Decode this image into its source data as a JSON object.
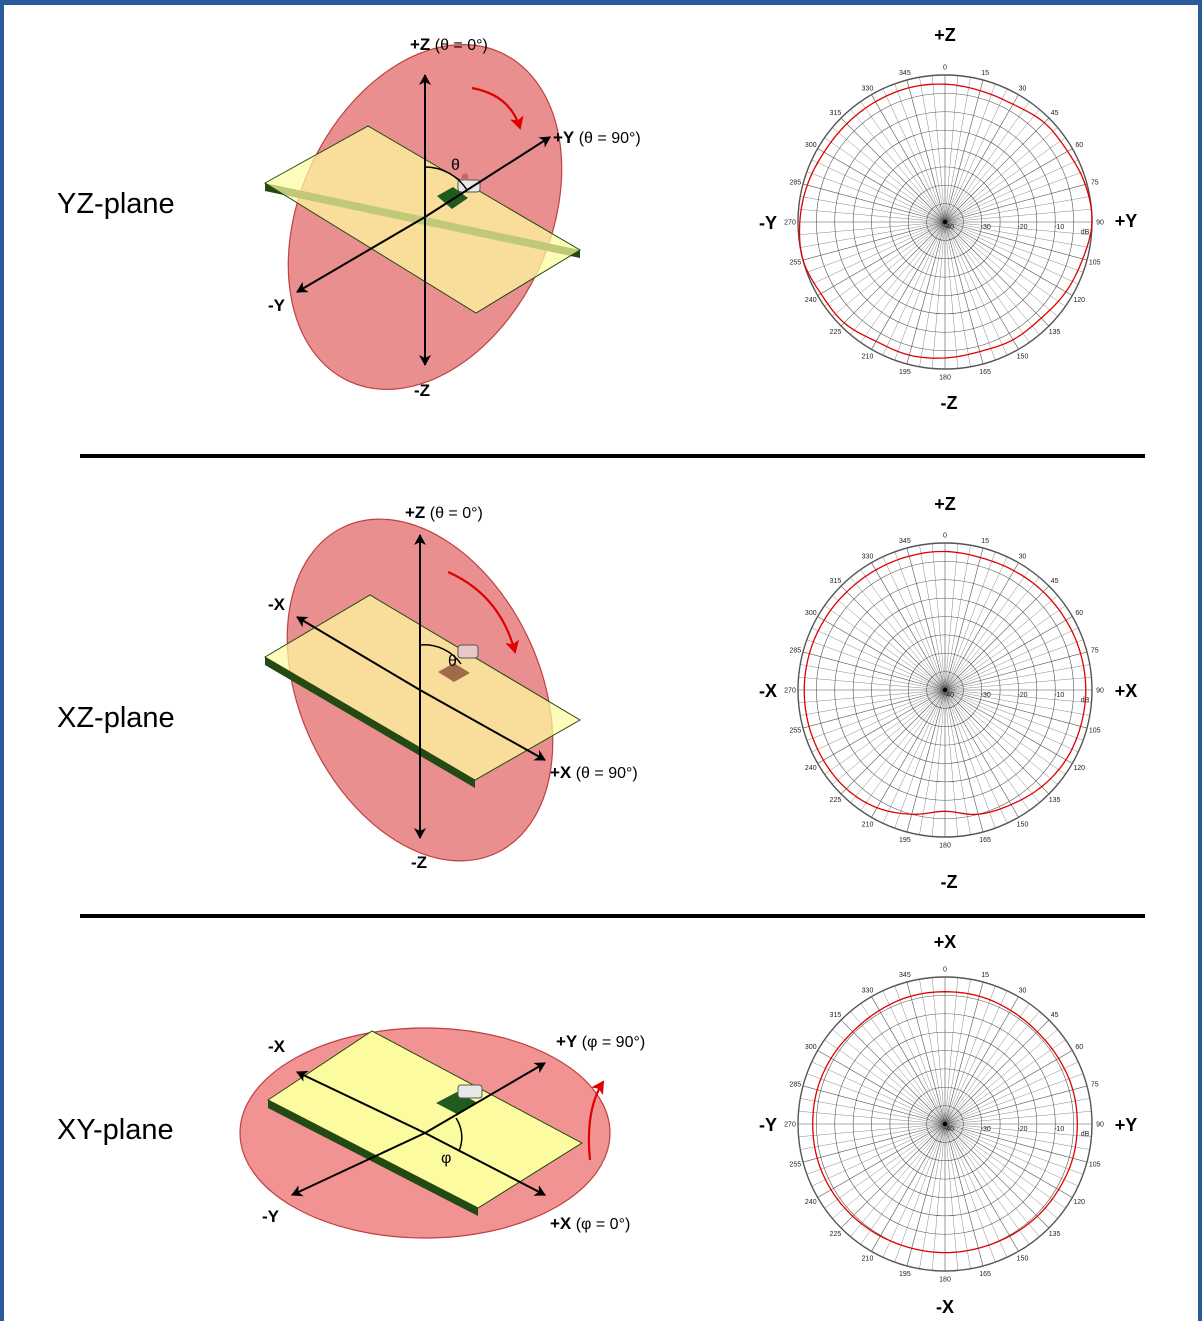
{
  "sections": [
    {
      "plane_label": "YZ-plane",
      "diagram": {
        "top": {
          "axis": "+Z",
          "paren": " (θ = 0°)"
        },
        "right": {
          "axis": "+Y",
          "paren": " (θ = 90°)"
        },
        "left": "-Y",
        "bottom": "-Z",
        "angle": "θ"
      },
      "polar": {
        "top": "+Z",
        "bottom": "-Z",
        "left": "-Y",
        "right": "+Y"
      }
    },
    {
      "plane_label": "XZ-plane",
      "diagram": {
        "top": {
          "axis": "+Z",
          "paren": " (θ = 0°)"
        },
        "right": {
          "axis": "+X",
          "paren": " (θ = 90°)"
        },
        "left": "-X",
        "bottom": "-Z",
        "angle": "θ"
      },
      "polar": {
        "top": "+Z",
        "bottom": "-Z",
        "left": "-X",
        "right": "+X"
      }
    },
    {
      "plane_label": "XY-plane",
      "diagram": {
        "top": {
          "axis": "+Y",
          "paren": " (φ = 90°)"
        },
        "right": {
          "axis": "+X",
          "paren": " (φ = 0°)"
        },
        "left": "-X",
        "bottom": "-Y",
        "angle": "φ"
      },
      "polar": {
        "top": "+X",
        "bottom": "-X",
        "left": "-Y",
        "right": "+Y"
      }
    }
  ],
  "polar_grid": {
    "angle_labels": [
      "0",
      "15",
      "30",
      "45",
      "60",
      "75",
      "90",
      "105",
      "120",
      "135",
      "150",
      "165",
      "180",
      "195",
      "210",
      "225",
      "240",
      "255",
      "270",
      "285",
      "300",
      "315",
      "330",
      "345"
    ],
    "radial_labels": [
      "-40",
      "-30",
      "-20",
      "-10"
    ],
    "unit": "dB"
  },
  "colors": {
    "pattern": "#e00000",
    "ellipse": "#e36f6f",
    "board": "#fdfba0",
    "board_edge": "#224a12",
    "frame": "#2a5a9a",
    "rotation_arrow": "#e00000"
  },
  "chart_data": [
    {
      "type": "polar",
      "plane": "YZ",
      "r_range_db": [
        -40,
        0
      ],
      "theta_deg": [
        0,
        15,
        30,
        45,
        60,
        75,
        90,
        105,
        120,
        135,
        150,
        165,
        180,
        195,
        210,
        225,
        240,
        255,
        270,
        285,
        300,
        315,
        330,
        345
      ],
      "gain_db": [
        -2.5,
        -3,
        -3,
        -1.8,
        -1.5,
        -0.5,
        0,
        -1.2,
        -2,
        -3,
        -3,
        -3.5,
        -3,
        -2.5,
        -2.5,
        -1.2,
        -1,
        0,
        -0.5,
        -1.2,
        -2,
        -2.2,
        -2.2,
        -2.2
      ]
    },
    {
      "type": "polar",
      "plane": "XZ",
      "r_range_db": [
        -40,
        0
      ],
      "theta_deg": [
        0,
        15,
        30,
        45,
        60,
        75,
        90,
        105,
        120,
        135,
        150,
        165,
        180,
        195,
        210,
        225,
        240,
        255,
        270,
        285,
        300,
        315,
        330,
        345
      ],
      "gain_db": [
        -2.3,
        -2.7,
        -2.5,
        -2.2,
        -2,
        -1.8,
        -1.7,
        -1.8,
        -2,
        -2.8,
        -4,
        -5,
        -7,
        -5,
        -3,
        -2,
        -1.8,
        -1.7,
        -1.7,
        -1.8,
        -2,
        -2.2,
        -2.3,
        -2.3
      ]
    },
    {
      "type": "polar",
      "plane": "XY",
      "r_range_db": [
        -40,
        0
      ],
      "theta_deg": [
        0,
        15,
        30,
        45,
        60,
        75,
        90,
        105,
        120,
        135,
        150,
        165,
        180,
        195,
        210,
        225,
        240,
        255,
        270,
        285,
        300,
        315,
        330,
        345
      ],
      "gain_db": [
        -4,
        -4,
        -4.3,
        -4.5,
        -4.3,
        -4,
        -4,
        -4,
        -4.3,
        -4.5,
        -4.8,
        -5,
        -5,
        -5,
        -4.8,
        -4.5,
        -4.2,
        -4,
        -4,
        -4,
        -4.2,
        -4.5,
        -4.3,
        -4
      ]
    }
  ]
}
